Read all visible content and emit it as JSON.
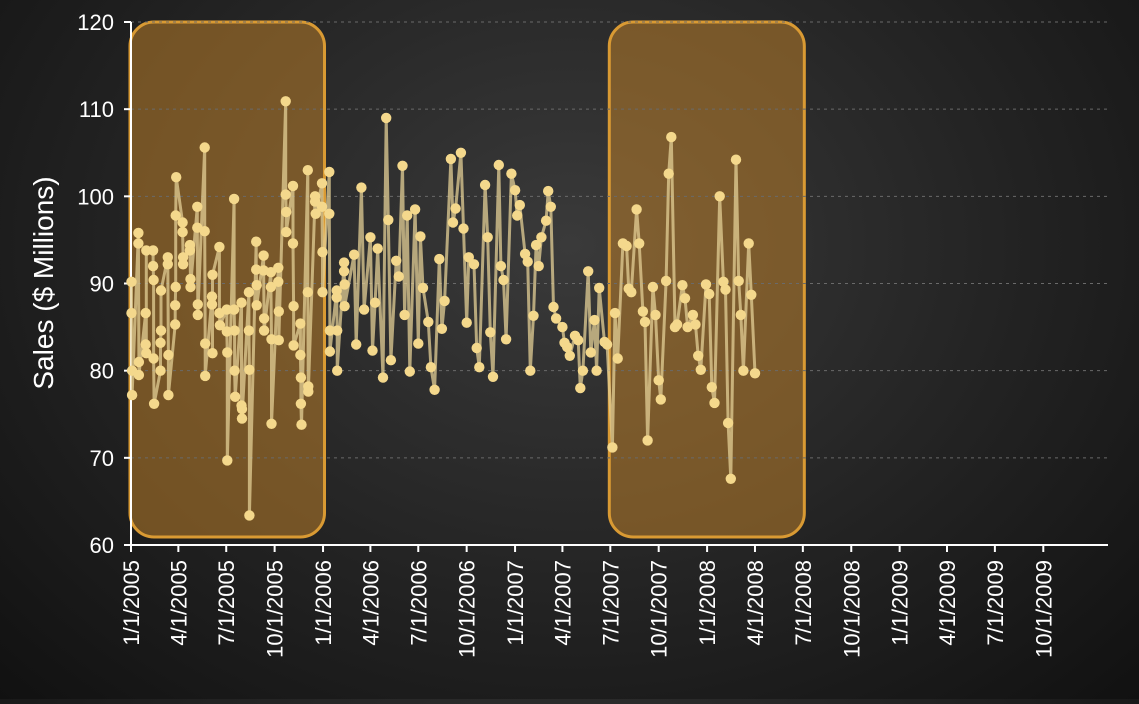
{
  "chart_data": {
    "type": "line",
    "title": "",
    "xlabel": "",
    "ylabel": "Sales  ($ Millions)",
    "ylim": [
      60,
      120
    ],
    "yticks": [
      60,
      70,
      80,
      90,
      100,
      110,
      120
    ],
    "grid": true,
    "legend": "none",
    "xlim": [
      "2005-01-01",
      "2010-02-01"
    ],
    "x_tick_labels": [
      {
        "date": "2005-01-01",
        "label": "1/1/2005"
      },
      {
        "date": "2005-04-01",
        "label": "4/1/2005"
      },
      {
        "date": "2005-07-01",
        "label": "7/1/2005"
      },
      {
        "date": "2005-10-01",
        "label": "10/1/2005"
      },
      {
        "date": "2006-01-01",
        "label": "1/1/2006"
      },
      {
        "date": "2006-04-01",
        "label": "4/1/2006"
      },
      {
        "date": "2006-07-01",
        "label": "7/1/2006"
      },
      {
        "date": "2006-10-01",
        "label": "10/1/2006"
      },
      {
        "date": "2007-01-01",
        "label": "1/1/2007"
      },
      {
        "date": "2007-04-01",
        "label": "4/1/2007"
      },
      {
        "date": "2007-07-01",
        "label": "7/1/2007"
      },
      {
        "date": "2007-10-01",
        "label": "10/1/2007"
      },
      {
        "date": "2008-01-01",
        "label": "1/1/2008"
      },
      {
        "date": "2008-04-01",
        "label": "4/1/2008"
      },
      {
        "date": "2008-07-01",
        "label": "7/1/2008"
      },
      {
        "date": "2008-10-01",
        "label": "10/1/2008"
      },
      {
        "date": "2009-01-01",
        "label": "1/1/2009"
      },
      {
        "date": "2009-04-01",
        "label": "4/1/2009"
      },
      {
        "date": "2009-07-01",
        "label": "7/1/2009"
      },
      {
        "date": "2009-10-01",
        "label": "10/1/2009"
      }
    ],
    "highlights": [
      {
        "start": "2005-01-01",
        "end": "2005-12-31",
        "color": "#c8862a"
      },
      {
        "start": "2007-07-01",
        "end": "2008-06-30",
        "color": "#c8862a"
      }
    ],
    "series": [
      {
        "color": "#e3cf95",
        "marker_color": "#f4d88c",
        "points": [
          [
            "2005-01-02",
            90.2
          ],
          [
            "2005-01-02",
            86.6
          ],
          [
            "2005-01-03",
            80.0
          ],
          [
            "2005-01-03",
            77.2
          ],
          [
            "2005-01-15",
            95.8
          ],
          [
            "2005-01-15",
            94.6
          ],
          [
            "2005-01-16",
            81.0
          ],
          [
            "2005-01-16",
            79.5
          ],
          [
            "2005-01-29",
            86.6
          ],
          [
            "2005-01-29",
            83.0
          ],
          [
            "2005-01-30",
            82.0
          ],
          [
            "2005-01-30",
            93.8
          ],
          [
            "2005-02-12",
            93.8
          ],
          [
            "2005-02-12",
            92.0
          ],
          [
            "2005-02-13",
            90.4
          ],
          [
            "2005-02-13",
            81.4
          ],
          [
            "2005-02-14",
            76.2
          ],
          [
            "2005-02-26",
            80.0
          ],
          [
            "2005-02-26",
            83.2
          ],
          [
            "2005-02-27",
            84.6
          ],
          [
            "2005-02-27",
            89.2
          ],
          [
            "2005-03-12",
            93.0
          ],
          [
            "2005-03-12",
            92.2
          ],
          [
            "2005-03-13",
            81.8
          ],
          [
            "2005-03-13",
            77.2
          ],
          [
            "2005-03-26",
            85.3
          ],
          [
            "2005-03-26",
            87.5
          ],
          [
            "2005-03-27",
            89.6
          ],
          [
            "2005-03-27",
            97.8
          ],
          [
            "2005-03-28",
            102.2
          ],
          [
            "2005-04-09",
            97.0
          ],
          [
            "2005-04-09",
            95.9
          ],
          [
            "2005-04-10",
            93.0
          ],
          [
            "2005-04-10",
            92.2
          ],
          [
            "2005-04-23",
            94.4
          ],
          [
            "2005-04-23",
            93.8
          ],
          [
            "2005-04-24",
            90.5
          ],
          [
            "2005-04-24",
            89.6
          ],
          [
            "2005-05-07",
            98.8
          ],
          [
            "2005-05-07",
            96.4
          ],
          [
            "2005-05-08",
            87.6
          ],
          [
            "2005-05-08",
            86.4
          ],
          [
            "2005-05-21",
            105.6
          ],
          [
            "2005-05-21",
            96.0
          ],
          [
            "2005-05-22",
            83.1
          ],
          [
            "2005-05-22",
            79.4
          ],
          [
            "2005-06-04",
            88.5
          ],
          [
            "2005-06-04",
            87.6
          ],
          [
            "2005-06-05",
            82.0
          ],
          [
            "2005-06-05",
            91.0
          ],
          [
            "2005-06-18",
            94.2
          ],
          [
            "2005-06-18",
            86.6
          ],
          [
            "2005-06-19",
            85.2
          ],
          [
            "2005-07-02",
            87.0
          ],
          [
            "2005-07-02",
            84.5
          ],
          [
            "2005-07-03",
            82.1
          ],
          [
            "2005-07-03",
            69.7
          ],
          [
            "2005-07-16",
            99.7
          ],
          [
            "2005-07-16",
            87.0
          ],
          [
            "2005-07-17",
            84.6
          ],
          [
            "2005-07-17",
            80.0
          ],
          [
            "2005-07-18",
            77.0
          ],
          [
            "2005-07-30",
            87.8
          ],
          [
            "2005-07-30",
            76.0
          ],
          [
            "2005-07-31",
            75.6
          ],
          [
            "2005-07-31",
            74.5
          ],
          [
            "2005-08-13",
            89.0
          ],
          [
            "2005-08-13",
            84.6
          ],
          [
            "2005-08-14",
            80.1
          ],
          [
            "2005-08-14",
            63.4
          ],
          [
            "2005-08-27",
            94.8
          ],
          [
            "2005-08-27",
            91.6
          ],
          [
            "2005-08-28",
            89.8
          ],
          [
            "2005-08-28",
            87.5
          ],
          [
            "2005-09-10",
            93.2
          ],
          [
            "2005-09-10",
            91.5
          ],
          [
            "2005-09-11",
            86.0
          ],
          [
            "2005-09-11",
            84.6
          ],
          [
            "2005-09-24",
            91.3
          ],
          [
            "2005-09-24",
            89.6
          ],
          [
            "2005-09-25",
            83.6
          ],
          [
            "2005-09-25",
            73.9
          ],
          [
            "2005-10-08",
            91.8
          ],
          [
            "2005-10-08",
            90.2
          ],
          [
            "2005-10-09",
            86.8
          ],
          [
            "2005-10-09",
            83.5
          ],
          [
            "2005-10-22",
            110.9
          ],
          [
            "2005-10-22",
            100.2
          ],
          [
            "2005-10-23",
            98.2
          ],
          [
            "2005-10-23",
            95.9
          ],
          [
            "2005-11-05",
            101.2
          ],
          [
            "2005-11-05",
            94.6
          ],
          [
            "2005-11-06",
            87.4
          ],
          [
            "2005-11-06",
            82.9
          ],
          [
            "2005-11-19",
            85.4
          ],
          [
            "2005-11-19",
            81.8
          ],
          [
            "2005-11-20",
            79.2
          ],
          [
            "2005-11-20",
            76.2
          ],
          [
            "2005-11-21",
            73.8
          ],
          [
            "2005-12-03",
            103.0
          ],
          [
            "2005-12-03",
            89.0
          ],
          [
            "2005-12-04",
            78.2
          ],
          [
            "2005-12-04",
            77.6
          ],
          [
            "2005-12-17",
            100.0
          ],
          [
            "2005-12-17",
            99.4
          ],
          [
            "2005-12-18",
            98.0
          ],
          [
            "2005-12-30",
            101.5
          ],
          [
            "2005-12-30",
            98.8
          ],
          [
            "2005-12-31",
            93.6
          ],
          [
            "2005-12-31",
            89.0
          ],
          [
            "2006-01-13",
            102.8
          ],
          [
            "2006-01-13",
            98.0
          ],
          [
            "2006-01-14",
            84.6
          ],
          [
            "2006-01-14",
            82.2
          ],
          [
            "2006-01-27",
            89.2
          ],
          [
            "2006-01-27",
            88.4
          ],
          [
            "2006-01-28",
            84.6
          ],
          [
            "2006-01-28",
            80.0
          ],
          [
            "2006-02-10",
            92.4
          ],
          [
            "2006-02-10",
            91.4
          ],
          [
            "2006-02-11",
            89.9
          ],
          [
            "2006-02-11",
            87.4
          ],
          [
            "2006-03-01",
            93.3
          ],
          [
            "2006-03-05",
            83.0
          ],
          [
            "2006-03-15",
            101.0
          ],
          [
            "2006-03-20",
            87.0
          ],
          [
            "2006-04-01",
            95.3
          ],
          [
            "2006-04-05",
            82.3
          ],
          [
            "2006-04-10",
            87.8
          ],
          [
            "2006-04-15",
            94.0
          ],
          [
            "2006-04-25",
            79.2
          ],
          [
            "2006-05-01",
            109.0
          ],
          [
            "2006-05-05",
            97.3
          ],
          [
            "2006-05-10",
            81.2
          ],
          [
            "2006-05-20",
            92.6
          ],
          [
            "2006-05-25",
            90.8
          ],
          [
            "2006-06-01",
            103.5
          ],
          [
            "2006-06-05",
            86.4
          ],
          [
            "2006-06-10",
            97.8
          ],
          [
            "2006-06-15",
            79.9
          ],
          [
            "2006-06-25",
            98.5
          ],
          [
            "2006-07-01",
            83.1
          ],
          [
            "2006-07-05",
            95.4
          ],
          [
            "2006-07-10",
            89.5
          ],
          [
            "2006-07-20",
            85.6
          ],
          [
            "2006-07-25",
            80.4
          ],
          [
            "2006-08-01",
            77.8
          ],
          [
            "2006-08-10",
            92.8
          ],
          [
            "2006-08-15",
            84.8
          ],
          [
            "2006-08-20",
            88.0
          ],
          [
            "2006-09-01",
            104.3
          ],
          [
            "2006-09-05",
            97.0
          ],
          [
            "2006-09-10",
            98.6
          ],
          [
            "2006-09-20",
            105.0
          ],
          [
            "2006-09-25",
            96.3
          ],
          [
            "2006-10-01",
            85.5
          ],
          [
            "2006-10-05",
            93.0
          ],
          [
            "2006-10-15",
            92.2
          ],
          [
            "2006-10-20",
            82.6
          ],
          [
            "2006-10-25",
            80.4
          ],
          [
            "2006-11-05",
            101.3
          ],
          [
            "2006-11-10",
            95.3
          ],
          [
            "2006-11-15",
            84.4
          ],
          [
            "2006-11-20",
            79.3
          ],
          [
            "2006-12-01",
            103.6
          ],
          [
            "2006-12-05",
            92.0
          ],
          [
            "2006-12-10",
            90.4
          ],
          [
            "2006-12-15",
            83.6
          ],
          [
            "2006-12-25",
            102.6
          ],
          [
            "2007-01-01",
            100.7
          ],
          [
            "2007-01-05",
            97.8
          ],
          [
            "2007-01-10",
            99.0
          ],
          [
            "2007-01-20",
            93.4
          ],
          [
            "2007-01-25",
            92.5
          ],
          [
            "2007-01-30",
            80.0
          ],
          [
            "2007-02-05",
            86.3
          ],
          [
            "2007-02-10",
            94.4
          ],
          [
            "2007-02-15",
            92.0
          ],
          [
            "2007-02-20",
            95.3
          ],
          [
            "2007-03-01",
            97.2
          ],
          [
            "2007-03-05",
            100.6
          ],
          [
            "2007-03-10",
            98.8
          ],
          [
            "2007-03-15",
            87.3
          ],
          [
            "2007-03-20",
            86.0
          ],
          [
            "2007-04-01",
            85.0
          ],
          [
            "2007-04-05",
            83.2
          ],
          [
            "2007-04-10",
            82.7
          ],
          [
            "2007-04-15",
            81.7
          ],
          [
            "2007-04-25",
            84.0
          ],
          [
            "2007-05-01",
            83.5
          ],
          [
            "2007-05-05",
            78.0
          ],
          [
            "2007-05-10",
            80.0
          ],
          [
            "2007-05-20",
            91.4
          ],
          [
            "2007-05-25",
            82.1
          ],
          [
            "2007-06-01",
            85.8
          ],
          [
            "2007-06-05",
            80.0
          ],
          [
            "2007-06-10",
            89.5
          ],
          [
            "2007-06-20",
            83.3
          ],
          [
            "2007-06-25",
            83.0
          ],
          [
            "2007-07-05",
            71.2
          ],
          [
            "2007-07-10",
            86.6
          ],
          [
            "2007-07-15",
            81.4
          ],
          [
            "2007-07-25",
            94.6
          ],
          [
            "2007-08-01",
            94.3
          ],
          [
            "2007-08-05",
            89.4
          ],
          [
            "2007-08-10",
            89.0
          ],
          [
            "2007-08-20",
            98.5
          ],
          [
            "2007-08-25",
            94.6
          ],
          [
            "2007-09-01",
            86.8
          ],
          [
            "2007-09-05",
            85.6
          ],
          [
            "2007-09-10",
            72.0
          ],
          [
            "2007-09-20",
            89.6
          ],
          [
            "2007-09-25",
            86.4
          ],
          [
            "2007-10-01",
            78.9
          ],
          [
            "2007-10-05",
            76.7
          ],
          [
            "2007-10-15",
            90.3
          ],
          [
            "2007-10-20",
            102.6
          ],
          [
            "2007-10-25",
            106.8
          ],
          [
            "2007-11-01",
            85.0
          ],
          [
            "2007-11-05",
            85.3
          ],
          [
            "2007-11-15",
            89.8
          ],
          [
            "2007-11-20",
            88.3
          ],
          [
            "2007-11-25",
            85.0
          ],
          [
            "2007-12-05",
            86.4
          ],
          [
            "2007-12-10",
            85.3
          ],
          [
            "2007-12-15",
            81.7
          ],
          [
            "2007-12-20",
            80.1
          ],
          [
            "2007-12-30",
            89.9
          ],
          [
            "2008-01-05",
            88.8
          ],
          [
            "2008-01-10",
            78.1
          ],
          [
            "2008-01-15",
            76.3
          ],
          [
            "2008-01-25",
            100.0
          ],
          [
            "2008-02-01",
            90.2
          ],
          [
            "2008-02-05",
            89.3
          ],
          [
            "2008-02-10",
            74.0
          ],
          [
            "2008-02-15",
            67.6
          ],
          [
            "2008-02-25",
            104.2
          ],
          [
            "2008-03-01",
            90.3
          ],
          [
            "2008-03-05",
            86.4
          ],
          [
            "2008-03-10",
            80.0
          ],
          [
            "2008-03-20",
            94.6
          ],
          [
            "2008-03-25",
            88.7
          ],
          [
            "2008-04-01",
            79.7
          ]
        ]
      }
    ]
  }
}
